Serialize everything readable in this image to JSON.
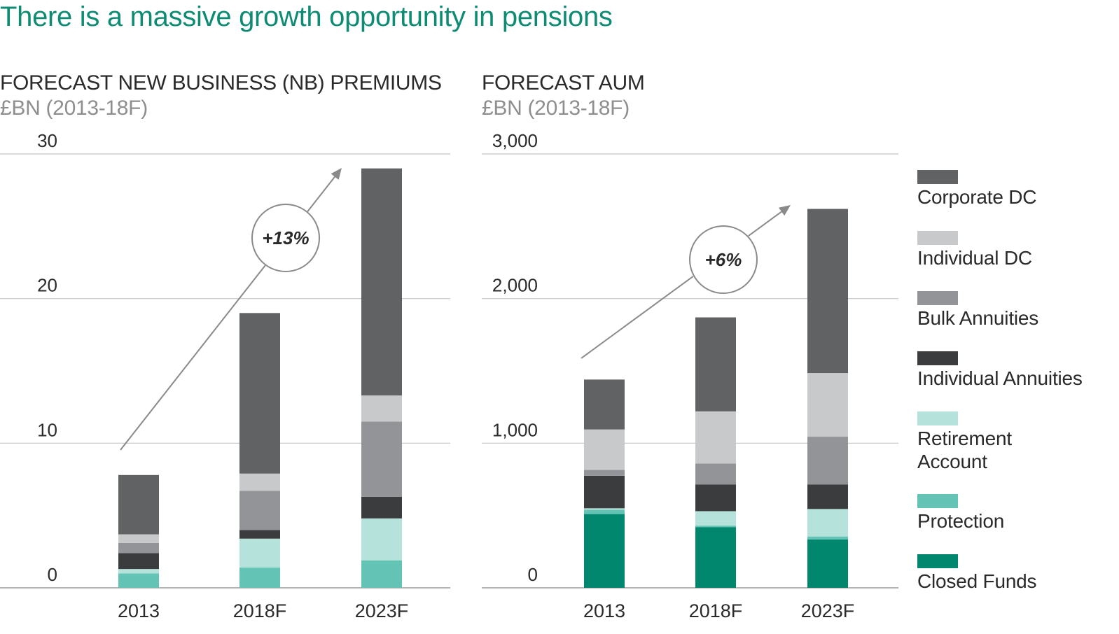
{
  "page": {
    "title": "There is a massive growth opportunity in pensions"
  },
  "colors": {
    "Corporate DC": "#616264",
    "Individual DC": "#c8c9cb",
    "Bulk Annuities": "#939497",
    "Individual Annuities": "#3b3c3e",
    "Retirement Account": "#b5e2da",
    "Protection": "#63c4b5",
    "Closed Funds": "#02876f"
  },
  "chart_data": [
    {
      "type": "bar",
      "stacked": true,
      "title": "FORECAST NEW BUSINESS (NB) PREMIUMS",
      "subtitle": "£BN (2013-18F)",
      "categories": [
        "2013",
        "2018F",
        "2023F"
      ],
      "yticks": [
        0,
        10,
        20,
        30
      ],
      "ytick_labels": [
        "0",
        "10",
        "20",
        "30"
      ],
      "ylim": [
        0,
        30
      ],
      "grid": true,
      "annotation": {
        "label": "+13%"
      },
      "series": [
        {
          "name": "Closed Funds",
          "values": [
            0,
            0,
            0
          ]
        },
        {
          "name": "Protection",
          "values": [
            1.0,
            1.4,
            1.9
          ]
        },
        {
          "name": "Retirement Account",
          "values": [
            0.3,
            2.0,
            2.9
          ]
        },
        {
          "name": "Individual Annuities",
          "values": [
            1.1,
            0.6,
            1.5
          ]
        },
        {
          "name": "Bulk Annuities",
          "values": [
            0.7,
            2.7,
            5.2
          ]
        },
        {
          "name": "Individual DC",
          "values": [
            0.6,
            1.2,
            1.8
          ]
        },
        {
          "name": "Corporate DC",
          "values": [
            4.1,
            11.1,
            15.7
          ]
        }
      ]
    },
    {
      "type": "bar",
      "stacked": true,
      "title": "FORECAST AUM",
      "subtitle": "£BN (2013-18F)",
      "categories": [
        "2013",
        "2018F",
        "2023F"
      ],
      "yticks": [
        0,
        1000,
        2000,
        3000
      ],
      "ytick_labels": [
        "0",
        "1,000",
        "2,000",
        "3,000"
      ],
      "ylim": [
        0,
        3000
      ],
      "grid": true,
      "annotation": {
        "label": "+6%"
      },
      "series": [
        {
          "name": "Closed Funds",
          "values": [
            510,
            420,
            335
          ]
        },
        {
          "name": "Protection",
          "values": [
            30,
            10,
            20
          ]
        },
        {
          "name": "Retirement Account",
          "values": [
            10,
            100,
            190
          ]
        },
        {
          "name": "Individual Annuities",
          "values": [
            225,
            185,
            170
          ]
        },
        {
          "name": "Bulk Annuities",
          "values": [
            40,
            145,
            330
          ]
        },
        {
          "name": "Individual DC",
          "values": [
            280,
            360,
            440
          ]
        },
        {
          "name": "Corporate DC",
          "values": [
            345,
            650,
            1135
          ]
        }
      ]
    }
  ],
  "legend": {
    "position": "right",
    "items": [
      {
        "name": "Corporate DC",
        "label": "Corporate DC"
      },
      {
        "name": "Individual DC",
        "label": "Individual DC"
      },
      {
        "name": "Bulk Annuities",
        "label": "Bulk Annuities"
      },
      {
        "name": "Individual Annuities",
        "label": "Individual Annuities"
      },
      {
        "name": "Retirement Account",
        "label": "Retirement\nAccount"
      },
      {
        "name": "Protection",
        "label": "Protection"
      },
      {
        "name": "Closed Funds",
        "label": "Closed Funds"
      }
    ]
  }
}
